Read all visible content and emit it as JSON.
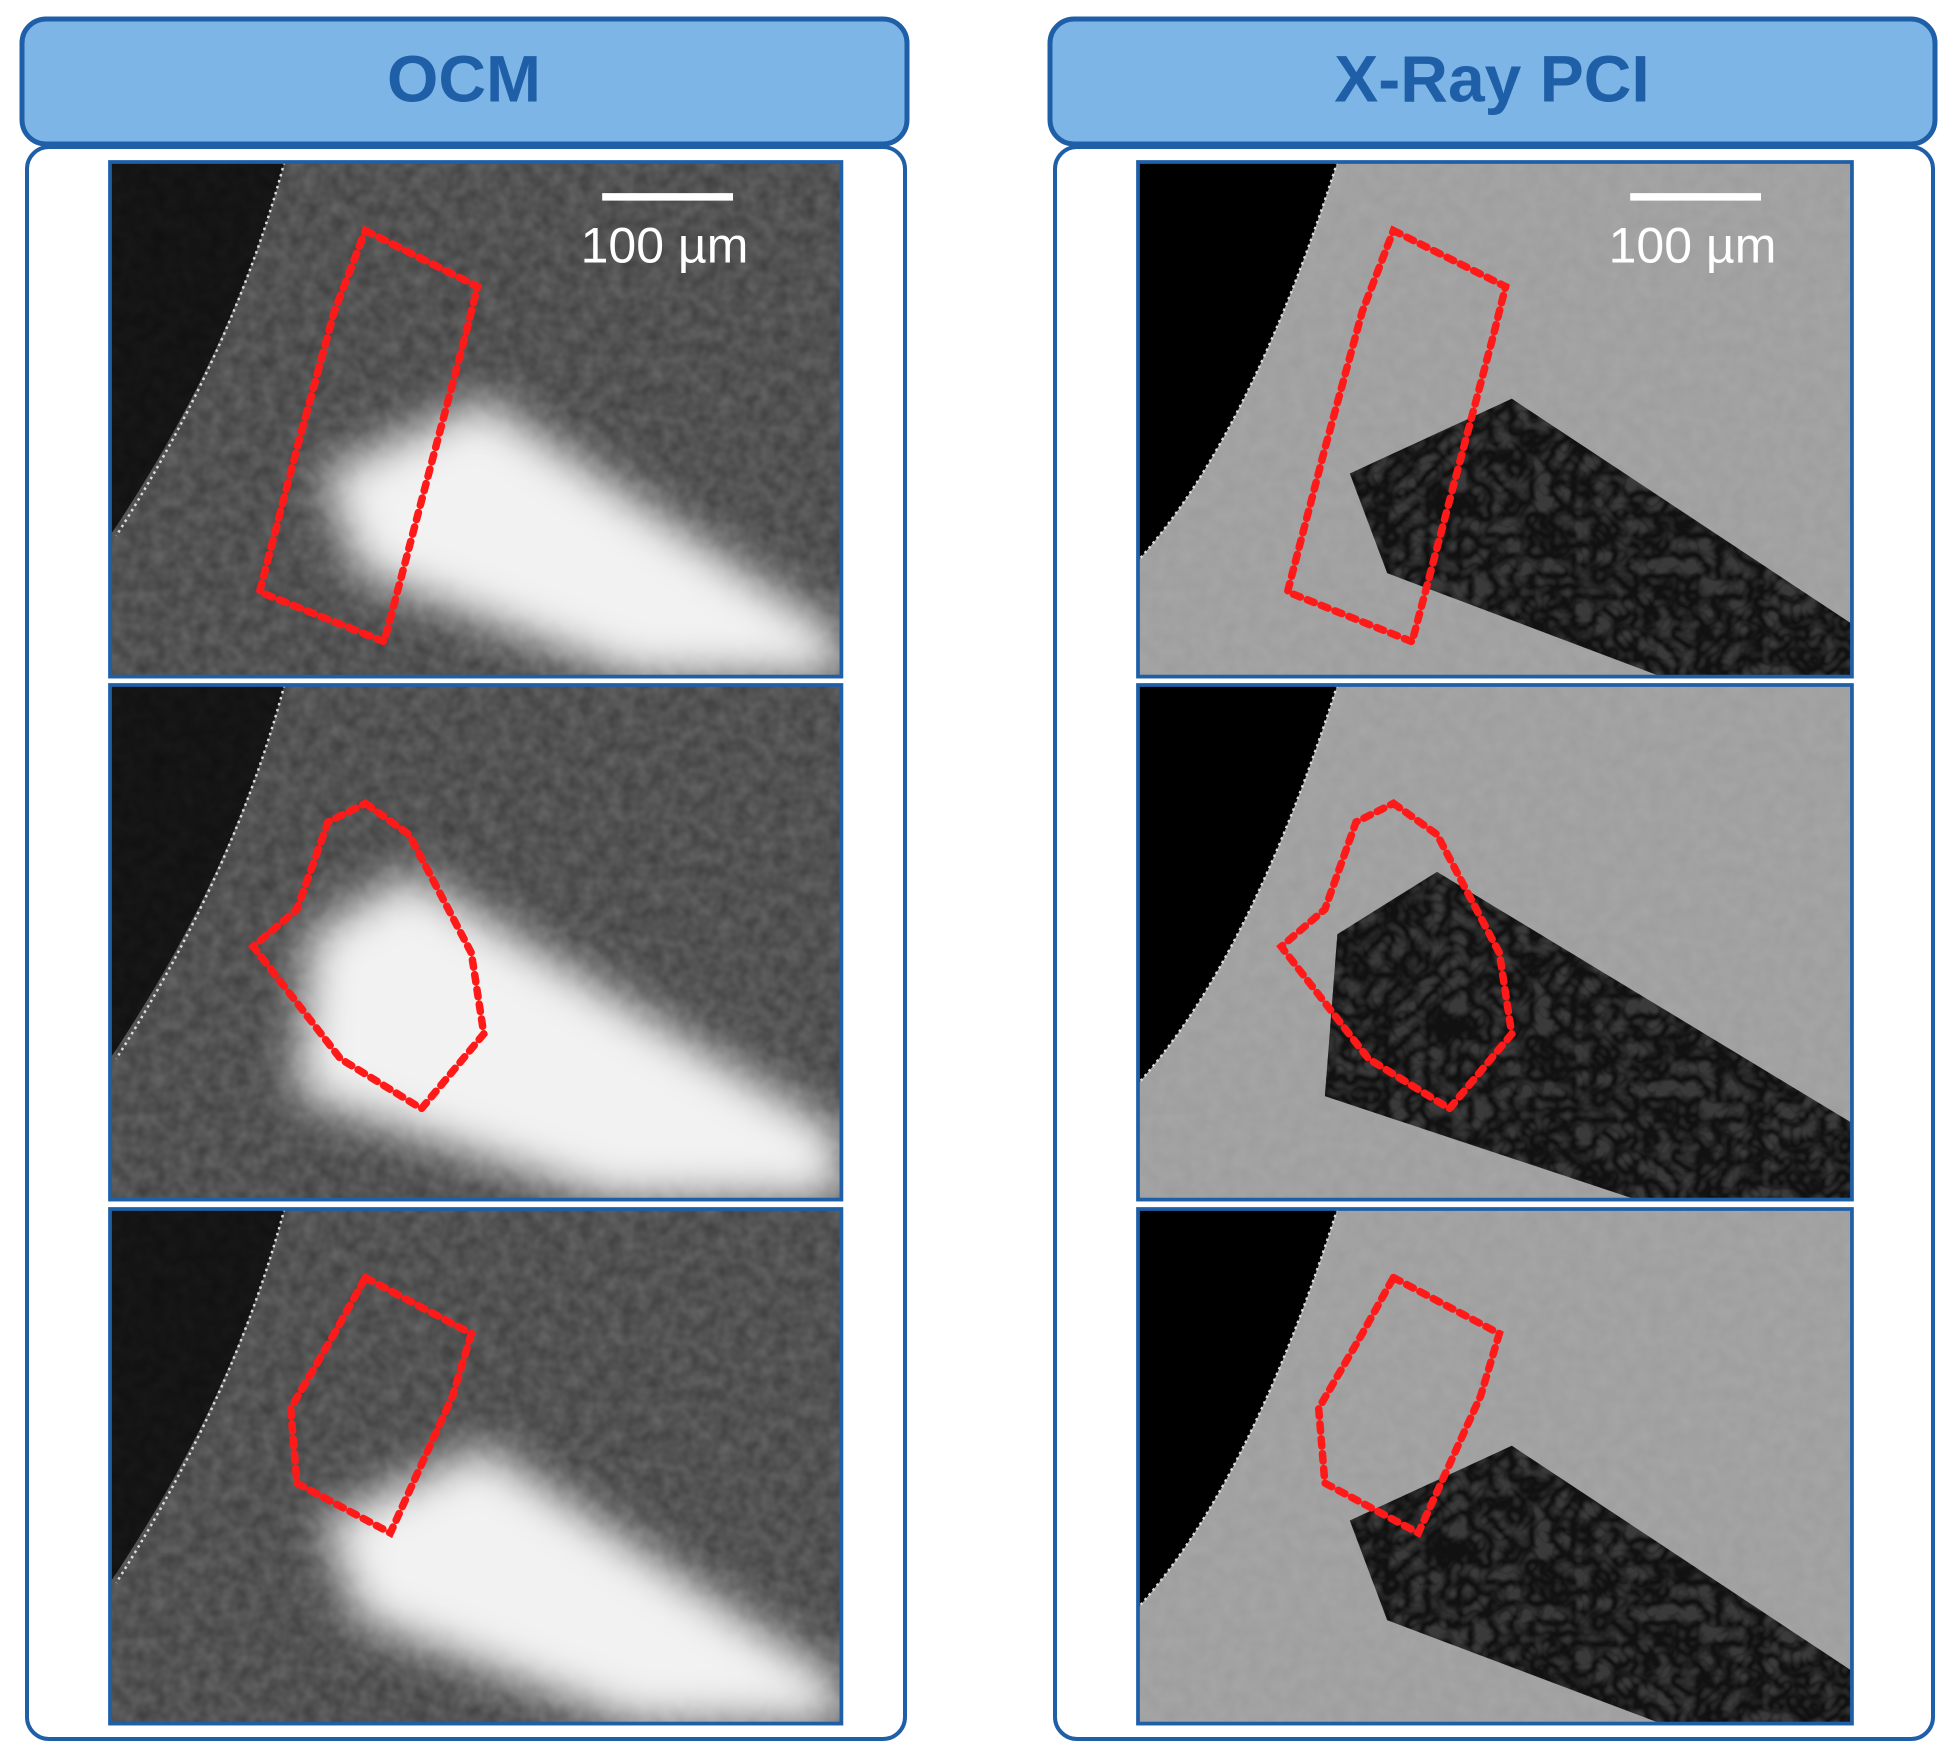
{
  "panels": [
    {
      "title": "OCM",
      "scale_bar": "100 µm"
    },
    {
      "title": "X-Ray PCI",
      "scale_bar": "100 µm"
    }
  ]
}
